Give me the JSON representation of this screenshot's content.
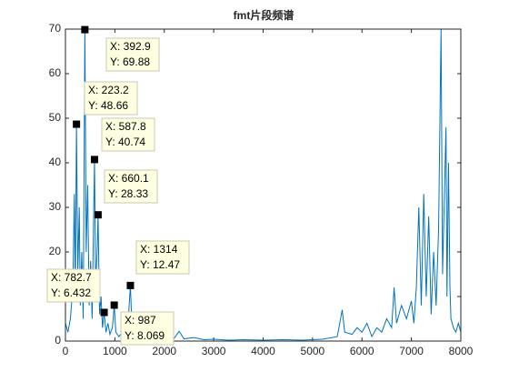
{
  "chart_data": {
    "type": "line",
    "title": "fmt片段频谱",
    "xlim": [
      0,
      8000
    ],
    "xticks": [
      0,
      1000,
      2000,
      3000,
      4000,
      5000,
      6000,
      7000,
      8000
    ],
    "ylim": [
      0,
      70
    ],
    "yticks": [
      0,
      10,
      20,
      30,
      40,
      50,
      60,
      70
    ],
    "series": [
      {
        "color": "#0072bd",
        "x": [
          0,
          50,
          100,
          150,
          180,
          200,
          223.2,
          250,
          280,
          300,
          330,
          360,
          392.9,
          420,
          450,
          480,
          510,
          540,
          587.8,
          610,
          640,
          660.1,
          690,
          720,
          750,
          782.7,
          820,
          860,
          900,
          950,
          987,
          1020,
          1080,
          1150,
          1250,
          1314,
          1350,
          1450,
          1600,
          1800,
          2000,
          2200,
          2300,
          2400,
          2600,
          2800,
          3000,
          3300,
          3600,
          4000,
          4400,
          4800,
          5200,
          5500,
          5600,
          5650,
          5800,
          5900,
          6000,
          6100,
          6200,
          6300,
          6400,
          6500,
          6600,
          6650,
          6700,
          6800,
          6900,
          7000,
          7050,
          7100,
          7150,
          7200,
          7250,
          7300,
          7350,
          7400,
          7450,
          7500,
          7550,
          7600,
          7630,
          7700,
          7720,
          7750,
          7780,
          7800,
          7850,
          7900,
          7950,
          8000
        ],
        "values": [
          4,
          2,
          5,
          12,
          33,
          10,
          48.66,
          15,
          30,
          8,
          20,
          5,
          69.88,
          20,
          35,
          8,
          18,
          5,
          40.74,
          12,
          20,
          28.33,
          6,
          10,
          3,
          6.432,
          2,
          4,
          1.5,
          3,
          8.069,
          2,
          1,
          2,
          1,
          12.47,
          2,
          1,
          0.5,
          0.8,
          0.4,
          0.6,
          2.2,
          0.5,
          0.8,
          0.3,
          0.4,
          0.2,
          0.3,
          0.2,
          0.3,
          0.2,
          0.4,
          1,
          7,
          2,
          1.5,
          3,
          2,
          4,
          1,
          3,
          2,
          5,
          3,
          12,
          4,
          8,
          5,
          9,
          4,
          12,
          30,
          8,
          33,
          10,
          28,
          6,
          20,
          8,
          25,
          70,
          15,
          48,
          10,
          40,
          12,
          5,
          3,
          2,
          4,
          2
        ]
      }
    ],
    "datatips": [
      {
        "x": 392.9,
        "y": 69.88,
        "x_label": "X: 392.9",
        "y_label": "Y: 69.88"
      },
      {
        "x": 223.2,
        "y": 48.66,
        "x_label": "X: 223.2",
        "y_label": "Y: 48.66"
      },
      {
        "x": 587.8,
        "y": 40.74,
        "x_label": "X: 587.8",
        "y_label": "Y: 40.74"
      },
      {
        "x": 660.1,
        "y": 28.33,
        "x_label": "X: 660.1",
        "y_label": "Y: 28.33"
      },
      {
        "x": 782.7,
        "y": 6.432,
        "x_label": "X: 782.7",
        "y_label": "Y: 6.432"
      },
      {
        "x": 987,
        "y": 8.069,
        "x_label": "X: 987",
        "y_label": "Y: 8.069"
      },
      {
        "x": 1314,
        "y": 12.47,
        "x_label": "X: 1314",
        "y_label": "Y: 12.47"
      }
    ]
  }
}
